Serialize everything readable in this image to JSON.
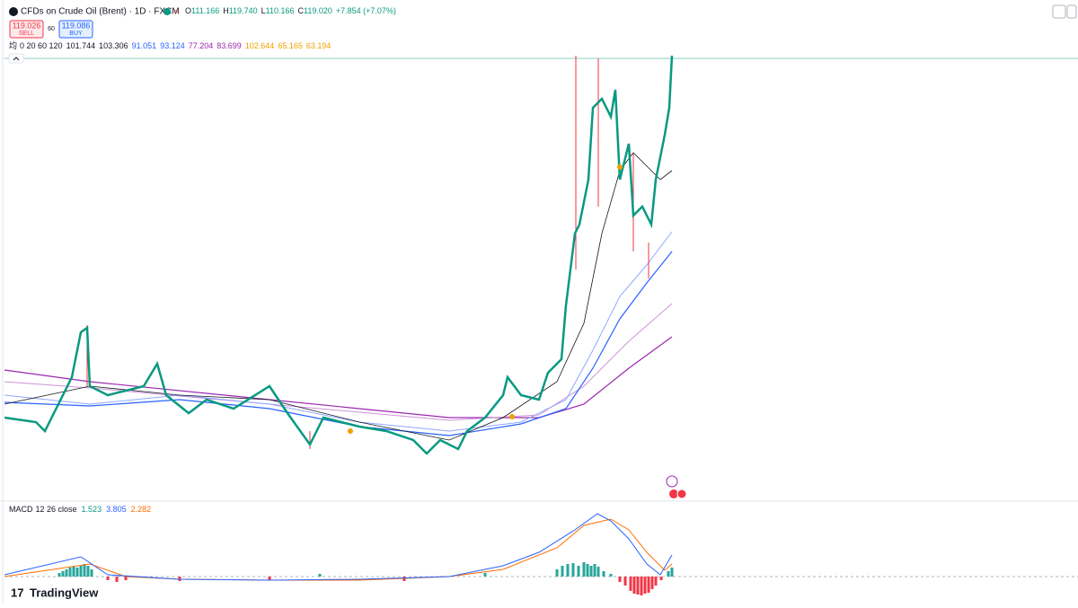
{
  "header": {
    "title": "CFDs on Crude Oil (Brent) · 1D · FXCM",
    "ohlc": [
      {
        "label": "O",
        "value": "111.166"
      },
      {
        "label": "H",
        "value": "119.740"
      },
      {
        "label": "L",
        "value": "110.166"
      },
      {
        "label": "C",
        "value": "119.020"
      }
    ],
    "change": "+7.854 (+7.07%)"
  },
  "trade": {
    "sell": {
      "price": "119.026",
      "label": "SELL"
    },
    "spread": "60",
    "buy": {
      "price": "119.086",
      "label": "BUY"
    }
  },
  "indicator": {
    "name": "均",
    "params": "0 20 60 120",
    "values": [
      {
        "text": "101.744",
        "color": "#131722"
      },
      {
        "text": "103.306",
        "color": "#131722"
      },
      {
        "text": "91.051",
        "color": "#2962ff"
      },
      {
        "text": "93.124",
        "color": "#2962ff"
      },
      {
        "text": "77.204",
        "color": "#9c27b0"
      },
      {
        "text": "83.699",
        "color": "#9c27b0"
      },
      {
        "text": "102.644",
        "color": "#f0a000"
      },
      {
        "text": "65.165",
        "color": "#f0a000"
      },
      {
        "text": "63.194",
        "color": "#f0a000"
      }
    ]
  },
  "macd": {
    "name": "MACD",
    "params": "12 26 close",
    "values": [
      {
        "text": "1.523",
        "color": "#089981"
      },
      {
        "text": "3.805",
        "color": "#2962ff"
      },
      {
        "text": "2.282",
        "color": "#ff6d00"
      }
    ]
  },
  "brand": "TradingView"
}
